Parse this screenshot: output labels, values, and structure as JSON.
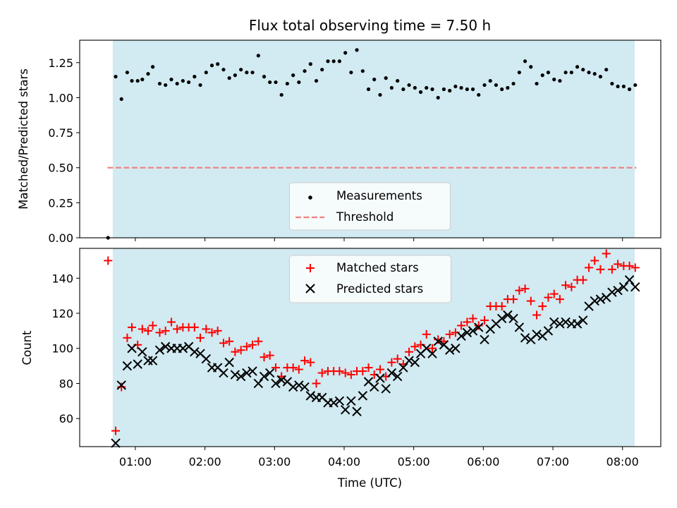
{
  "chart_data": [
    {
      "type": "scatter",
      "title": "Flux total observing time = 7.50 h",
      "xlabel": "",
      "ylabel": "Matched/Predicted stars",
      "xlim": [
        0.2,
        8.55
      ],
      "ylim": [
        0.0,
        1.41
      ],
      "shaded_span": [
        0.675,
        8.175
      ],
      "shade_color": "#add8e6",
      "yticks": [
        0.0,
        0.25,
        0.5,
        0.75,
        1.0,
        1.25
      ],
      "yticklabels": [
        "0.00",
        "0.25",
        "0.50",
        "0.75",
        "1.00",
        "1.25"
      ],
      "legend_position": "bottom-center",
      "threshold": {
        "name": "Threshold",
        "value": 0.5,
        "x_range": [
          0.6,
          8.2
        ],
        "color": "#f08080"
      },
      "series": [
        {
          "name": "Measurements",
          "marker": "dot",
          "color": "#000000",
          "x": [
            0.608,
            0.717,
            0.8,
            0.883,
            0.95,
            1.033,
            1.1,
            1.183,
            1.25,
            1.35,
            1.433,
            1.517,
            1.6,
            1.683,
            1.767,
            1.85,
            1.933,
            2.017,
            2.1,
            2.183,
            2.267,
            2.35,
            2.433,
            2.517,
            2.6,
            2.683,
            2.767,
            2.85,
            2.933,
            3.017,
            3.1,
            3.183,
            3.267,
            3.35,
            3.433,
            3.517,
            3.6,
            3.683,
            3.767,
            3.85,
            3.933,
            4.017,
            4.1,
            4.183,
            4.267,
            4.35,
            4.433,
            4.517,
            4.6,
            4.683,
            4.767,
            4.85,
            4.933,
            5.017,
            5.1,
            5.183,
            5.267,
            5.35,
            5.433,
            5.517,
            5.6,
            5.683,
            5.767,
            5.85,
            5.933,
            6.017,
            6.1,
            6.183,
            6.267,
            6.35,
            6.433,
            6.517,
            6.6,
            6.683,
            6.767,
            6.85,
            6.933,
            7.017,
            7.1,
            7.183,
            7.267,
            7.35,
            7.433,
            7.517,
            7.6,
            7.683,
            7.767,
            7.85,
            7.933,
            8.017,
            8.1,
            8.183
          ],
          "y": [
            0.0,
            1.15,
            0.99,
            1.18,
            1.12,
            1.12,
            1.13,
            1.17,
            1.22,
            1.1,
            1.09,
            1.13,
            1.1,
            1.12,
            1.11,
            1.15,
            1.09,
            1.18,
            1.23,
            1.24,
            1.2,
            1.14,
            1.16,
            1.2,
            1.18,
            1.18,
            1.3,
            1.15,
            1.11,
            1.11,
            1.02,
            1.1,
            1.16,
            1.11,
            1.19,
            1.24,
            1.12,
            1.2,
            1.26,
            1.26,
            1.26,
            1.32,
            1.18,
            1.34,
            1.19,
            1.06,
            1.13,
            1.02,
            1.14,
            1.07,
            1.12,
            1.06,
            1.09,
            1.07,
            1.04,
            1.07,
            1.06,
            1.0,
            1.06,
            1.05,
            1.08,
            1.07,
            1.06,
            1.06,
            1.02,
            1.09,
            1.12,
            1.09,
            1.06,
            1.07,
            1.1,
            1.18,
            1.26,
            1.22,
            1.1,
            1.16,
            1.18,
            1.13,
            1.12,
            1.18,
            1.18,
            1.22,
            1.2,
            1.18,
            1.17,
            1.15,
            1.2,
            1.1,
            1.08,
            1.08,
            1.06,
            1.09
          ]
        }
      ]
    },
    {
      "type": "scatter",
      "title": "",
      "xlabel": "Time (UTC)",
      "ylabel": "Count",
      "xlim": [
        0.2,
        8.55
      ],
      "ylim": [
        44,
        157
      ],
      "shaded_span": [
        0.675,
        8.175
      ],
      "shade_color": "#add8e6",
      "yticks": [
        60,
        80,
        100,
        120,
        140
      ],
      "yticklabels": [
        "60",
        "80",
        "100",
        "120",
        "140"
      ],
      "xticks": [
        1,
        2,
        3,
        4,
        5,
        6,
        7,
        8
      ],
      "xticklabels": [
        "01:00",
        "02:00",
        "03:00",
        "04:00",
        "05:00",
        "06:00",
        "07:00",
        "08:00"
      ],
      "legend_position": "top-center",
      "series": [
        {
          "name": "Matched stars",
          "marker": "plus",
          "color": "#ff0000",
          "x": [
            0.608,
            0.717,
            0.8,
            0.883,
            0.95,
            1.033,
            1.1,
            1.183,
            1.25,
            1.35,
            1.433,
            1.517,
            1.6,
            1.683,
            1.767,
            1.85,
            1.933,
            2.017,
            2.1,
            2.183,
            2.267,
            2.35,
            2.433,
            2.517,
            2.6,
            2.683,
            2.767,
            2.85,
            2.933,
            3.017,
            3.1,
            3.183,
            3.267,
            3.35,
            3.433,
            3.517,
            3.6,
            3.683,
            3.767,
            3.85,
            3.933,
            4.017,
            4.1,
            4.183,
            4.267,
            4.35,
            4.433,
            4.517,
            4.6,
            4.683,
            4.767,
            4.85,
            4.933,
            5.017,
            5.1,
            5.183,
            5.267,
            5.35,
            5.433,
            5.517,
            5.6,
            5.683,
            5.767,
            5.85,
            5.933,
            6.017,
            6.1,
            6.183,
            6.267,
            6.35,
            6.433,
            6.517,
            6.6,
            6.683,
            6.767,
            6.85,
            6.933,
            7.017,
            7.1,
            7.183,
            7.267,
            7.35,
            7.433,
            7.517,
            7.6,
            7.683,
            7.767,
            7.85,
            7.933,
            8.017,
            8.1,
            8.183
          ],
          "y": [
            150,
            53,
            78,
            106,
            112,
            102,
            111,
            110,
            113,
            109,
            110,
            115,
            111,
            112,
            112,
            112,
            106,
            111,
            109,
            110,
            103,
            104,
            98,
            99,
            101,
            102,
            104,
            95,
            96,
            89,
            84,
            89,
            89,
            88,
            93,
            92,
            80,
            86,
            87,
            87,
            87,
            86,
            85,
            87,
            87,
            89,
            85,
            88,
            84,
            92,
            94,
            91,
            98,
            101,
            102,
            108,
            100,
            105,
            104,
            108,
            109,
            113,
            115,
            117,
            113,
            116,
            124,
            124,
            124,
            128,
            128,
            133,
            134,
            127,
            119,
            124,
            129,
            131,
            128,
            136,
            135,
            139,
            139,
            146,
            150,
            145,
            154,
            145,
            148,
            147,
            147,
            146
          ]
        },
        {
          "name": "Predicted stars",
          "marker": "x",
          "color": "#000000",
          "x": [
            0.608,
            0.717,
            0.8,
            0.883,
            0.95,
            1.033,
            1.1,
            1.183,
            1.25,
            1.35,
            1.433,
            1.517,
            1.6,
            1.683,
            1.767,
            1.85,
            1.933,
            2.017,
            2.1,
            2.183,
            2.267,
            2.35,
            2.433,
            2.517,
            2.6,
            2.683,
            2.767,
            2.85,
            2.933,
            3.017,
            3.1,
            3.183,
            3.267,
            3.35,
            3.433,
            3.517,
            3.6,
            3.683,
            3.767,
            3.85,
            3.933,
            4.017,
            4.1,
            4.183,
            4.267,
            4.35,
            4.433,
            4.517,
            4.6,
            4.683,
            4.767,
            4.85,
            4.933,
            5.017,
            5.1,
            5.183,
            5.267,
            5.35,
            5.433,
            5.517,
            5.6,
            5.683,
            5.767,
            5.85,
            5.933,
            6.017,
            6.1,
            6.183,
            6.267,
            6.35,
            6.433,
            6.517,
            6.6,
            6.683,
            6.767,
            6.85,
            6.933,
            7.017,
            7.1,
            7.183,
            7.267,
            7.35,
            7.433,
            7.517,
            7.6,
            7.683,
            7.767,
            7.85,
            7.933,
            8.017,
            8.1,
            8.183
          ],
          "y": [
            null,
            46,
            79,
            90,
            100,
            91,
            98,
            93,
            93,
            99,
            101,
            100,
            100,
            100,
            101,
            98,
            97,
            94,
            89,
            89,
            86,
            92,
            85,
            84,
            86,
            87,
            80,
            84,
            86,
            80,
            82,
            81,
            78,
            79,
            78,
            73,
            72,
            72,
            69,
            69,
            70,
            65,
            70,
            64,
            73,
            81,
            78,
            83,
            77,
            86,
            84,
            89,
            93,
            92,
            97,
            100,
            97,
            104,
            102,
            99,
            100,
            107,
            109,
            110,
            112,
            105,
            111,
            114,
            117,
            119,
            117,
            112,
            106,
            105,
            108,
            107,
            110,
            115,
            114,
            115,
            114,
            114,
            116,
            124,
            127,
            128,
            129,
            132,
            133,
            135,
            139,
            135
          ]
        }
      ]
    }
  ]
}
